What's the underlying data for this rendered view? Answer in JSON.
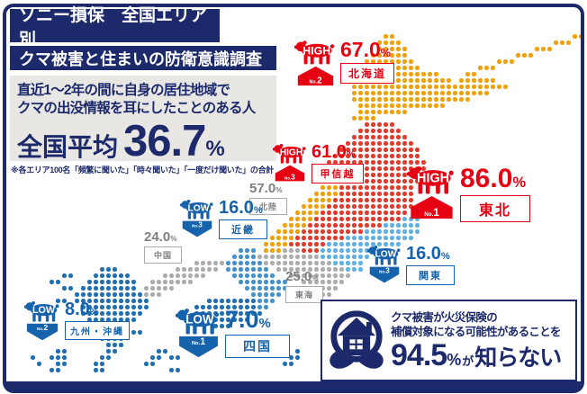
{
  "header": {
    "line1": "ソニー損保　全国エリア別",
    "line2": "クマ被害と住まいの防衛意識調査"
  },
  "question": {
    "line1": "直近1〜2年の間に自身の居住地域で",
    "line2": "クマの出没情報を耳にしたことのある人",
    "average_label": "全国平均",
    "average_value": "36.7",
    "percent_sign": "%"
  },
  "note": "※各エリア100名「頻繁に聞いた」「時々聞いた」「一度だけ聞いた」の合計",
  "fact_box": {
    "line1": "クマ被害が火災保険の",
    "line2": "補償対象になる可能性があることを",
    "value": "94.5",
    "percent_sign": "%",
    "connector": "が",
    "suffix": "知らない"
  },
  "colors": {
    "navy": "#1C2A6B",
    "red": "#E60012",
    "blue": "#1663AC",
    "gray_text": "#7D7F83",
    "gray_border": "#A9ABAE",
    "panel_bg": "#E9E7E4",
    "dot_red": "#E23B2E",
    "dot_orange": "#F2A007",
    "dot_gray": "#ABACAE",
    "dot_lightblue": "#5FB1E3",
    "dot_midblue": "#4390CB",
    "dot_deepblue": "#1F6FB2"
  },
  "regions": [
    {
      "id": "hokkaido",
      "name": "北海道",
      "value": "67.0",
      "unit": "%",
      "rank": "HIGH",
      "rank_no": "No.2",
      "tone": "red"
    },
    {
      "id": "tohoku",
      "name": "東北",
      "value": "86.0",
      "unit": "%",
      "rank": "HIGH",
      "rank_no": "No.1",
      "tone": "red"
    },
    {
      "id": "koshinetsu",
      "name": "甲信越",
      "value": "61.0",
      "unit": "%",
      "rank": "HIGH",
      "rank_no": "No.3",
      "tone": "red"
    },
    {
      "id": "hokuriku",
      "name": "北陸",
      "value": "57.0",
      "unit": "%",
      "rank": null,
      "rank_no": null,
      "tone": "gray"
    },
    {
      "id": "kanto",
      "name": "関東",
      "value": "16.0",
      "unit": "%",
      "rank": "LOW",
      "rank_no": "No.3",
      "tone": "blue"
    },
    {
      "id": "tokai",
      "name": "東海",
      "value": "25.0",
      "unit": "%",
      "rank": null,
      "rank_no": null,
      "tone": "gray"
    },
    {
      "id": "kinki",
      "name": "近畿",
      "value": "16.0",
      "unit": "%",
      "rank": "LOW",
      "rank_no": "No.3",
      "tone": "blue"
    },
    {
      "id": "chugoku",
      "name": "中国",
      "value": "24.0",
      "unit": "%",
      "rank": null,
      "rank_no": null,
      "tone": "gray"
    },
    {
      "id": "shikoku",
      "name": "四国",
      "value": "7.0",
      "unit": "%",
      "rank": "LOW",
      "rank_no": "No.1",
      "tone": "blue"
    },
    {
      "id": "kyushu_okinawa",
      "name": "九州・沖縄",
      "value": "8.0",
      "unit": "%",
      "rank": "LOW",
      "rank_no": "No.2",
      "tone": "blue"
    }
  ],
  "chart_data": {
    "type": "heatmap",
    "subtype": "japan-choropleth-dot-map",
    "title": "直近1〜2年の間に自身の居住地域でクマの出没情報を耳にしたことのある人",
    "national_average_pct": 36.7,
    "categories": [
      "北海道",
      "東北",
      "甲信越",
      "北陸",
      "関東",
      "東海",
      "近畿",
      "中国",
      "四国",
      "九州・沖縄"
    ],
    "values": [
      67.0,
      86.0,
      61.0,
      57.0,
      16.0,
      25.0,
      16.0,
      24.0,
      7.0,
      8.0
    ],
    "annotations": [
      "HIGH No.2",
      "HIGH No.1",
      "HIGH No.3",
      "",
      "LOW No.3",
      "",
      "LOW No.3",
      "",
      "LOW No.1",
      "LOW No.2"
    ],
    "related_stat": {
      "label": "クマ被害が火災保険の補償対象になる可能性があることを知らない",
      "value_pct": 94.5
    },
    "dot_grid": {
      "origin": [
        27,
        38
      ],
      "pitch": 7,
      "regions": [
        {
          "id": "hokkaido",
          "color": "dot_orange",
          "runs": [
            [
              0,
              57,
              58
            ],
            [
              0,
              87,
              88
            ],
            [
              1,
              56,
              59
            ],
            [
              1,
              84,
              86
            ],
            [
              2,
              56,
              60
            ],
            [
              2,
              81,
              83
            ],
            [
              3,
              55,
              60
            ],
            [
              3,
              78,
              80
            ],
            [
              4,
              54,
              61
            ],
            [
              4,
              75,
              77
            ],
            [
              5,
              53,
              62
            ],
            [
              5,
              72,
              74
            ],
            [
              6,
              53,
              65
            ],
            [
              6,
              70,
              71
            ],
            [
              7,
              52,
              67
            ],
            [
              7,
              69,
              74
            ],
            [
              8,
              52,
              76
            ],
            [
              9,
              52,
              73
            ],
            [
              10,
              52,
              70
            ],
            [
              11,
              53,
              66
            ],
            [
              12,
              53,
              60
            ],
            [
              13,
              52,
              55
            ]
          ]
        },
        {
          "id": "tohoku_koshinetsu",
          "color": "dot_red",
          "runs": [
            [
              14,
              54,
              58
            ],
            [
              15,
              53,
              59
            ],
            [
              16,
              52,
              60
            ],
            [
              17,
              51,
              61
            ],
            [
              18,
              50,
              62
            ],
            [
              19,
              49,
              62
            ],
            [
              20,
              48,
              63
            ],
            [
              21,
              48,
              63
            ],
            [
              22,
              49,
              63
            ],
            [
              23,
              49,
              62
            ],
            [
              24,
              50,
              61
            ],
            [
              25,
              50,
              61
            ],
            [
              26,
              49,
              61
            ],
            [
              27,
              48,
              61
            ],
            [
              28,
              47,
              60
            ],
            [
              29,
              46,
              59
            ],
            [
              30,
              45,
              56
            ],
            [
              31,
              44,
              53
            ],
            [
              32,
              43,
              50
            ],
            [
              33,
              42,
              47
            ],
            [
              34,
              44,
              46
            ]
          ]
        },
        {
          "id": "hokuriku",
          "color": "dot_orange",
          "runs": [
            [
              24,
              47,
              49
            ],
            [
              25,
              46,
              49
            ],
            [
              26,
              45,
              48
            ],
            [
              27,
              44,
              47
            ],
            [
              28,
              43,
              46
            ],
            [
              29,
              42,
              45
            ],
            [
              30,
              41,
              44
            ],
            [
              31,
              40,
              43
            ],
            [
              32,
              39,
              42
            ],
            [
              33,
              38,
              41
            ],
            [
              34,
              38,
              40
            ]
          ]
        },
        {
          "id": "kanto",
          "color": "dot_lightblue",
          "runs": [
            [
              29,
              60,
              62
            ],
            [
              30,
              57,
              62
            ],
            [
              31,
              54,
              62
            ],
            [
              32,
              51,
              61
            ],
            [
              33,
              48,
              59
            ],
            [
              34,
              47,
              57
            ],
            [
              35,
              47,
              54
            ],
            [
              36,
              49,
              53
            ],
            [
              37,
              51,
              53
            ]
          ]
        },
        {
          "id": "tokai",
          "color": "dot_gray",
          "runs": [
            [
              34,
              41,
              43
            ],
            [
              35,
              37,
              46
            ],
            [
              36,
              38,
              48
            ],
            [
              37,
              40,
              50
            ],
            [
              38,
              42,
              51
            ],
            [
              39,
              44,
              50
            ],
            [
              40,
              46,
              49
            ],
            [
              41,
              47,
              48
            ]
          ]
        },
        {
          "id": "kinki",
          "color": "dot_midblue",
          "runs": [
            [
              34,
              34,
              36
            ],
            [
              35,
              33,
              36
            ],
            [
              36,
              32,
              37
            ],
            [
              37,
              32,
              38
            ],
            [
              38,
              33,
              39
            ],
            [
              39,
              34,
              41
            ],
            [
              40,
              35,
              41
            ],
            [
              41,
              36,
              40
            ],
            [
              42,
              37,
              39
            ],
            [
              43,
              37,
              38
            ]
          ]
        },
        {
          "id": "chugoku",
          "color": "dot_gray",
          "runs": [
            [
              36,
              27,
              31
            ],
            [
              37,
              24,
              30
            ],
            [
              38,
              22,
              28
            ],
            [
              39,
              20,
              26
            ],
            [
              40,
              19,
              23
            ],
            [
              41,
              19,
              21
            ]
          ]
        },
        {
          "id": "shikoku",
          "color": "dot_deepblue",
          "runs": [
            [
              42,
              29,
              36
            ],
            [
              43,
              27,
              36
            ],
            [
              44,
              27,
              37
            ],
            [
              45,
              28,
              35
            ],
            [
              46,
              30,
              32
            ]
          ]
        },
        {
          "id": "kyushu_okinawa",
          "color": "dot_deepblue",
          "runs": [
            [
              37,
              12,
              14
            ],
            [
              38,
              11,
              16
            ],
            [
              39,
              10,
              17
            ],
            [
              40,
              9,
              17
            ],
            [
              41,
              8,
              18
            ],
            [
              42,
              8,
              19
            ],
            [
              43,
              9,
              19
            ],
            [
              44,
              9,
              18
            ],
            [
              45,
              10,
              17
            ],
            [
              46,
              11,
              16
            ],
            [
              47,
              12,
              15
            ],
            [
              47,
              17,
              18
            ],
            [
              48,
              12,
              15
            ],
            [
              49,
              13,
              15
            ],
            [
              50,
              13,
              14
            ],
            [
              38,
              6,
              7
            ],
            [
              39,
              4,
              5
            ],
            [
              40,
              6,
              7
            ],
            [
              42,
              5,
              6
            ],
            [
              50,
              5,
              6
            ],
            [
              51,
              1,
              1
            ],
            [
              51,
              4,
              6
            ],
            [
              52,
              2,
              2
            ],
            [
              52,
              5,
              6
            ],
            [
              53,
              4,
              5
            ],
            [
              51,
              12,
              13
            ],
            [
              52,
              11,
              12
            ],
            [
              53,
              11,
              12
            ],
            [
              50,
              21,
              22
            ],
            [
              51,
              20,
              21
            ],
            [
              51,
              23,
              24
            ],
            [
              52,
              19,
              20
            ],
            [
              53,
              23,
              24
            ],
            [
              50,
              43,
              43
            ],
            [
              51,
              42,
              43
            ],
            [
              52,
              41,
              42
            ]
          ]
        }
      ]
    }
  }
}
